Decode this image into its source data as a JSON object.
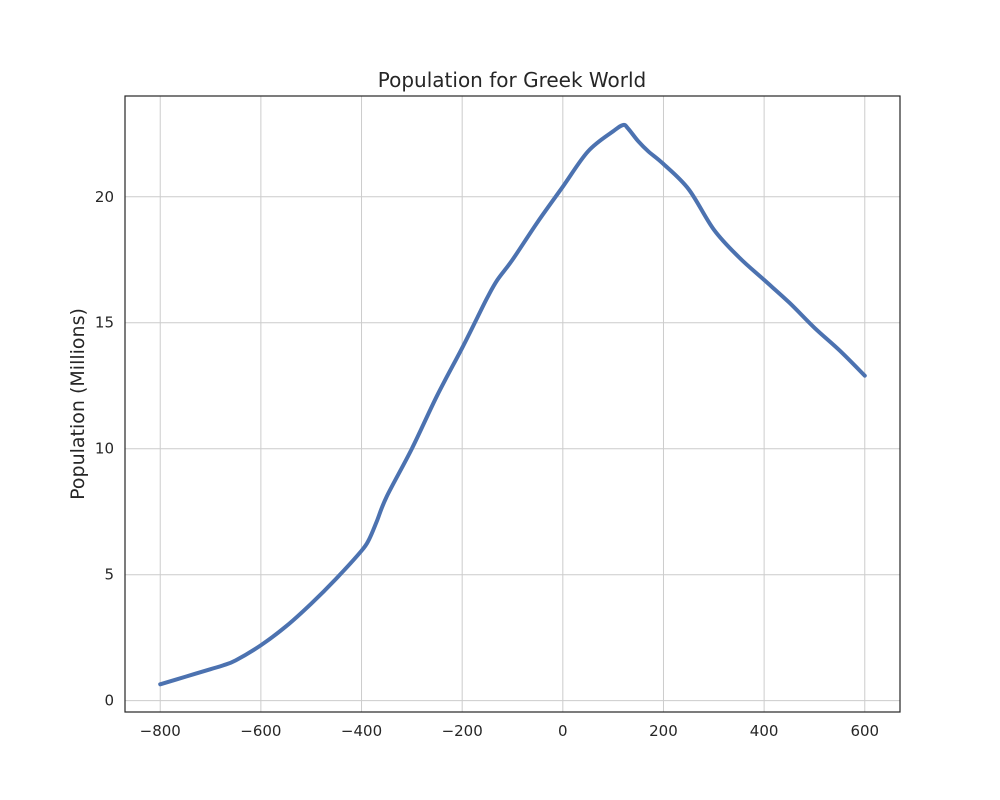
{
  "chart_data": {
    "type": "line",
    "title": "Population for Greek World",
    "xlabel": "",
    "ylabel": "Population (Millions)",
    "xlim": [
      -870,
      670
    ],
    "ylim": [
      -0.45,
      24.0
    ],
    "xticks": [
      -800,
      -600,
      -400,
      -200,
      0,
      200,
      400,
      600
    ],
    "xtick_labels": [
      "−800",
      "−600",
      "−400",
      "−200",
      "0",
      "200",
      "400",
      "600"
    ],
    "yticks": [
      0,
      5,
      10,
      15,
      20
    ],
    "ytick_labels": [
      "0",
      "5",
      "10",
      "15",
      "20"
    ],
    "grid": true,
    "legend": "none",
    "series": [
      {
        "color": "#4c72b0",
        "x": [
          -800,
          -750,
          -700,
          -675,
          -650,
          -600,
          -550,
          -500,
          -450,
          -400,
          -385,
          -370,
          -350,
          -300,
          -250,
          -200,
          -170,
          -150,
          -130,
          -100,
          -50,
          0,
          50,
          100,
          120,
          130,
          150,
          170,
          200,
          250,
          300,
          350,
          400,
          450,
          500,
          550,
          600
        ],
        "y": [
          0.65,
          0.95,
          1.25,
          1.4,
          1.6,
          2.2,
          2.95,
          3.85,
          4.85,
          5.95,
          6.4,
          7.1,
          8.1,
          10.0,
          12.1,
          14.0,
          15.2,
          16.0,
          16.7,
          17.5,
          19.0,
          20.4,
          21.8,
          22.6,
          22.85,
          22.7,
          22.2,
          21.8,
          21.3,
          20.3,
          18.7,
          17.6,
          16.7,
          15.8,
          14.8,
          13.9,
          12.9
        ]
      }
    ]
  }
}
